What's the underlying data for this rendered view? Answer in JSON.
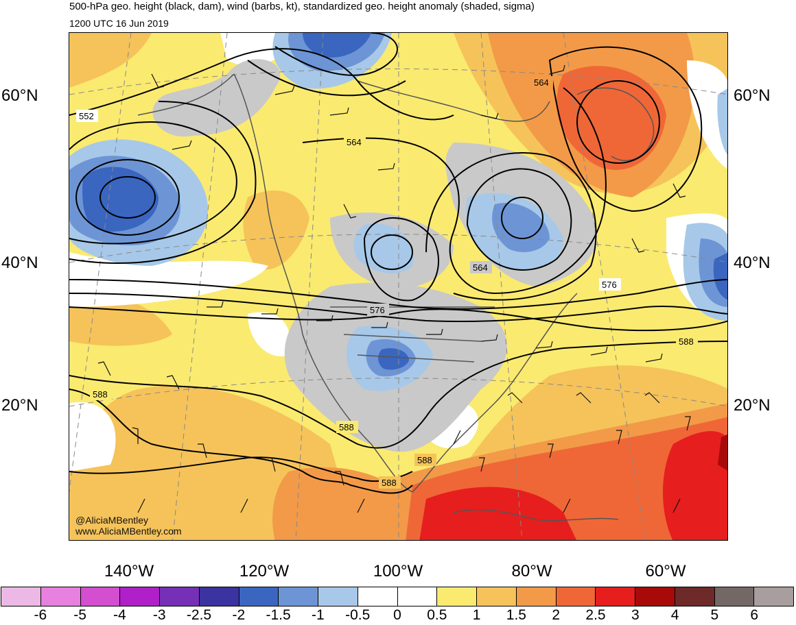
{
  "header": {
    "title": "500-hPa geo. height (black, dam), wind (barbs, kt), standardized geo. height anomaly (shaded, sigma)",
    "subtitle": "1200 UTC 16 Jun 2019"
  },
  "lat_labels": [
    "60°N",
    "40°N",
    "20°N"
  ],
  "lon_labels": [
    "140°W",
    "120°W",
    "100°W",
    "80°W",
    "60°W"
  ],
  "contour_labels": [
    "552",
    "564",
    "564",
    "564",
    "576",
    "576",
    "588",
    "588",
    "588",
    "588",
    "588"
  ],
  "credits": {
    "handle": "@AliciaMBentley",
    "website": "www.AliciaMBentley.com"
  },
  "colorbar": {
    "colors": [
      "#ecb8e6",
      "#e880e0",
      "#d44ed0",
      "#b020c8",
      "#7630b8",
      "#3a33a0",
      "#3a66c0",
      "#6d95d5",
      "#a7c8e8",
      "#ffffff",
      "#ffffff",
      "#faea70",
      "#f5c35a",
      "#f29a48",
      "#ef6737",
      "#e61e1e",
      "#a80a0a",
      "#6e2a28",
      "#746866",
      "#a89e9e"
    ],
    "ticks": [
      "-6",
      "-5",
      "-4",
      "-3",
      "-2.5",
      "-2",
      "-1.5",
      "-1",
      "-0.5",
      "0",
      "0.5",
      "1",
      "1.5",
      "2",
      "2.5",
      "3",
      "4",
      "5",
      "6"
    ]
  },
  "colors": {
    "gray_shade": "#c9c9c9",
    "contour": "#000000",
    "coastline": "#555555"
  }
}
